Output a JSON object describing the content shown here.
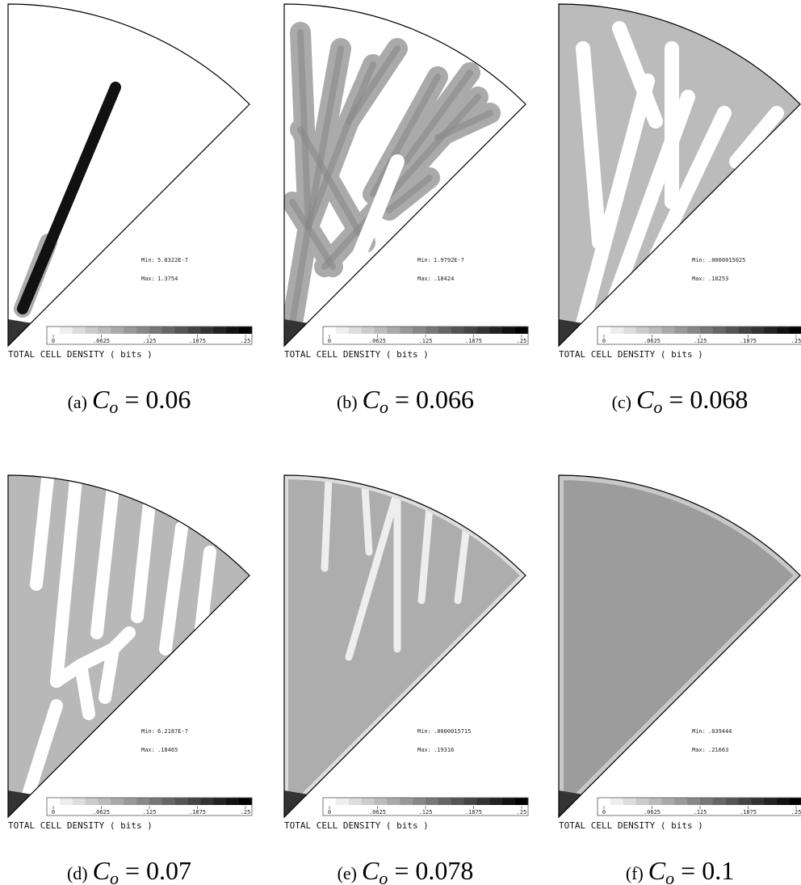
{
  "figure": {
    "panels": [
      {
        "min_label": "Min:",
        "min_value": "5.8322E-7",
        "max_label": "Max:",
        "max_value": "1.3754",
        "colorbar_ticks": [
          "0",
          ".0625",
          ".125",
          ".1875",
          ".25"
        ],
        "colorbar_title": "TOTAL CELL DENSITY ( bits )",
        "tag": "(a)",
        "variable": "C",
        "subscript": "o",
        "equals": "= 0.06"
      },
      {
        "min_label": "Min:",
        "min_value": "1.9792E-7",
        "max_label": "Max:",
        "max_value": ".18424",
        "colorbar_ticks": [
          "0",
          ".0625",
          ".125",
          ".1875",
          ".25"
        ],
        "colorbar_title": "TOTAL CELL DENSITY ( bits )",
        "tag": "(b)",
        "variable": "C",
        "subscript": "o",
        "equals": "= 0.066"
      },
      {
        "min_label": "Min:",
        "min_value": ".0000015025",
        "max_label": "Max:",
        "max_value": ".18253",
        "colorbar_ticks": [
          "0",
          ".0625",
          ".125",
          ".1875",
          ".25"
        ],
        "colorbar_title": "TOTAL CELL DENSITY ( bits )",
        "tag": "(c)",
        "variable": "C",
        "subscript": "o",
        "equals": "= 0.068"
      },
      {
        "min_label": "Min:",
        "min_value": "6.2187E-7",
        "max_label": "Max:",
        "max_value": ".18465",
        "colorbar_ticks": [
          "0",
          ".0625",
          ".125",
          ".1875",
          ".25"
        ],
        "colorbar_title": "TOTAL CELL DENSITY ( bits )",
        "tag": "(d)",
        "variable": "C",
        "subscript": "o",
        "equals": "= 0.07"
      },
      {
        "min_label": "Min:",
        "min_value": ".0000015715",
        "max_label": "Max:",
        "max_value": ".19316",
        "colorbar_ticks": [
          "0",
          ".0625",
          ".125",
          ".1875",
          ".25"
        ],
        "colorbar_title": "TOTAL CELL DENSITY ( bits )",
        "tag": "(e)",
        "variable": "C",
        "subscript": "o",
        "equals": "= 0.078"
      },
      {
        "min_label": "Min:",
        "min_value": ".039444",
        "max_label": "Max:",
        "max_value": ".21663",
        "colorbar_ticks": [
          "0",
          ".0625",
          ".125",
          ".1875",
          ".25"
        ],
        "colorbar_title": "TOTAL CELL DENSITY ( bits )",
        "tag": "(f)",
        "variable": "C",
        "subscript": "o",
        "equals": "= 0.1"
      }
    ]
  }
}
